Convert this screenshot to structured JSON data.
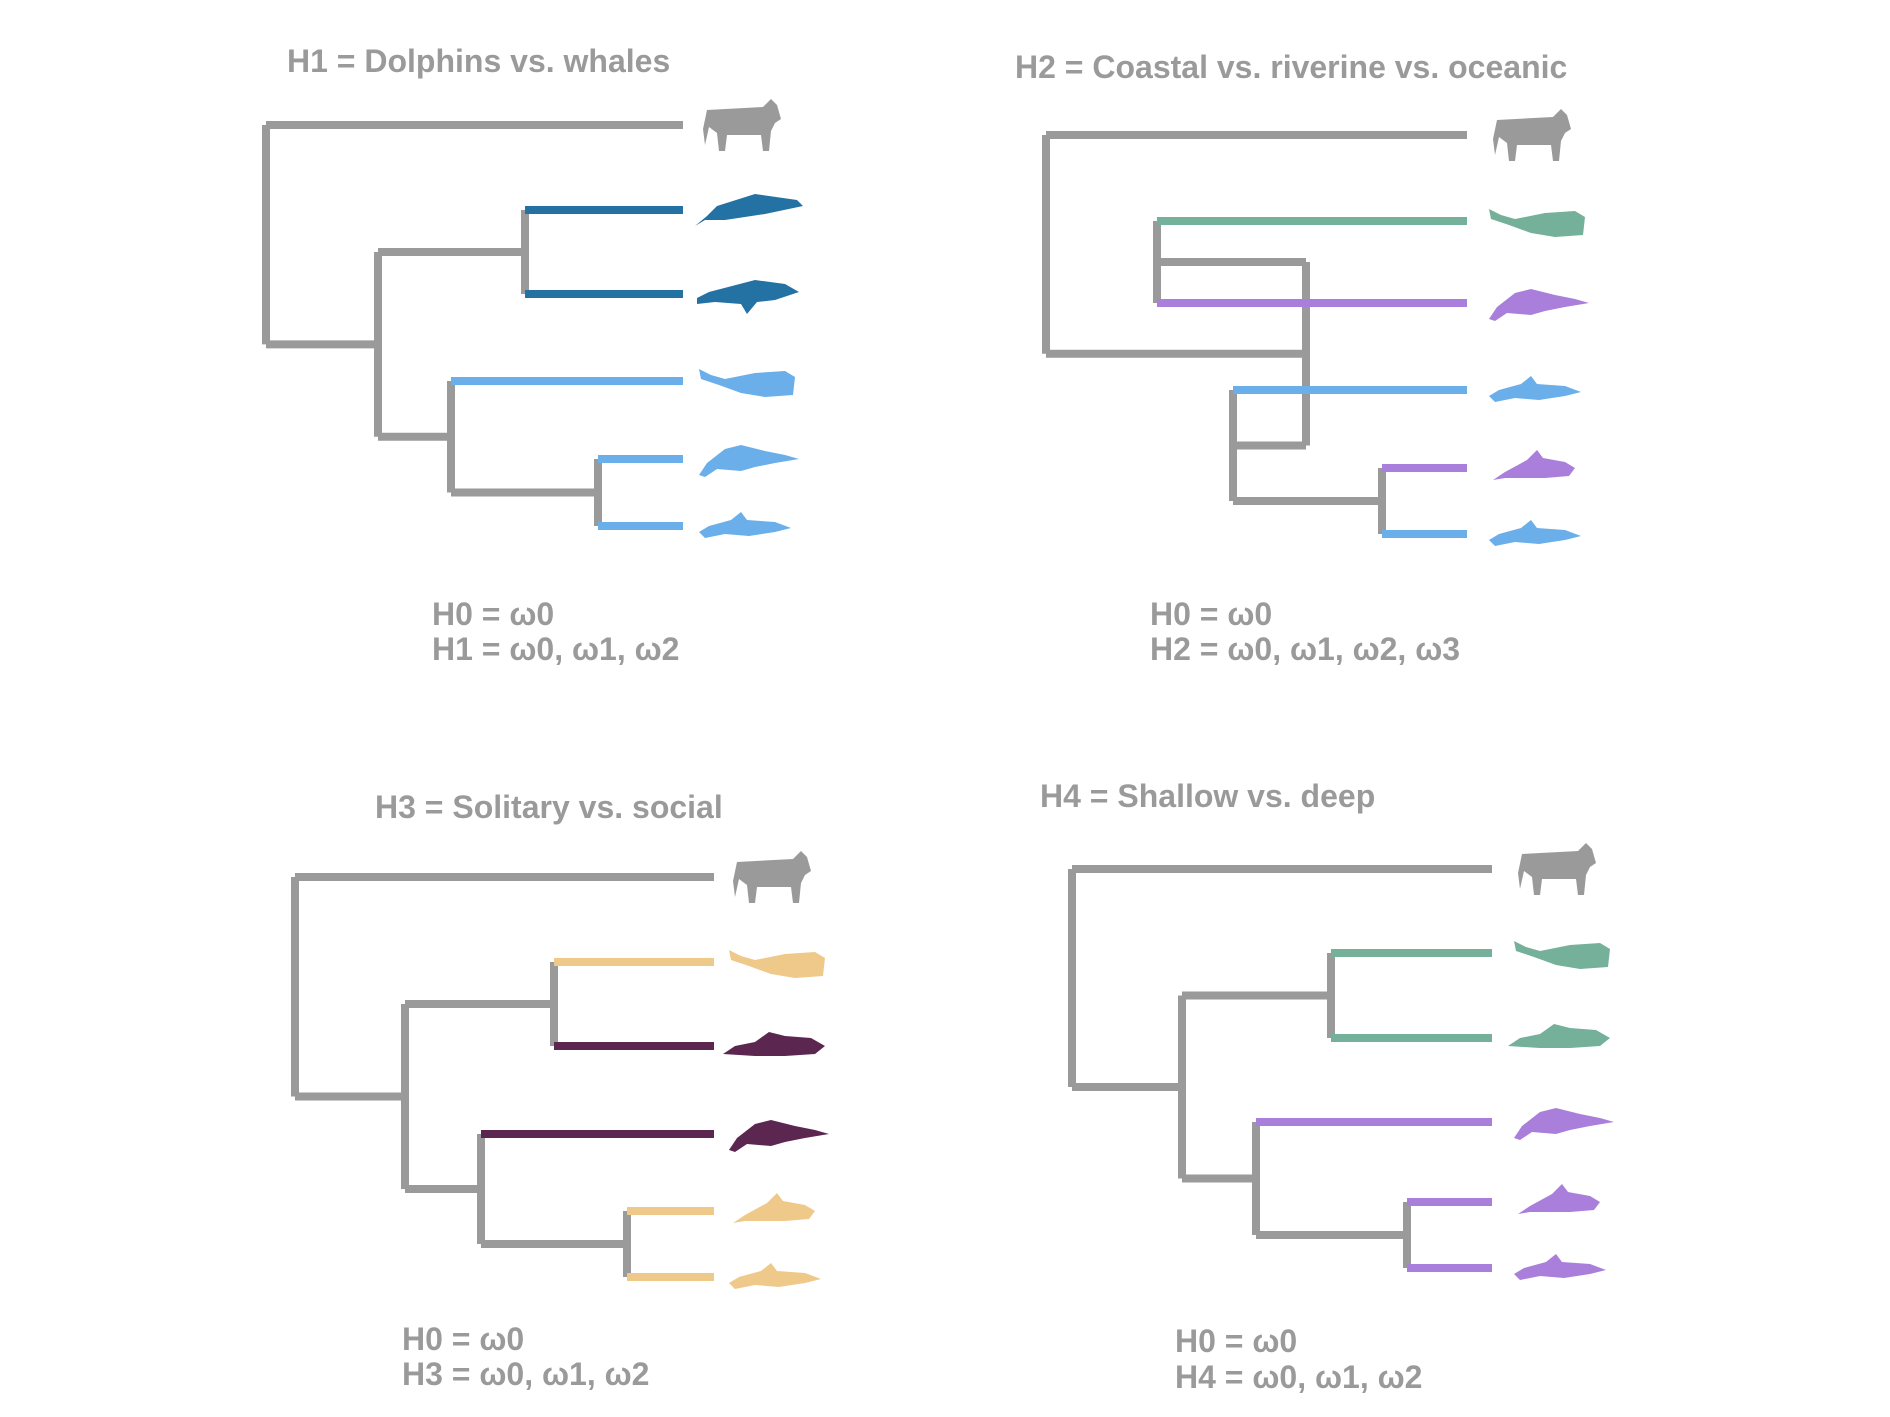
{
  "colors": {
    "gray": "#9a9a9a",
    "dark_blue": "#2471a3",
    "light_blue": "#6aaeea",
    "green": "#74b09a",
    "purple": "#a97fdb",
    "tan": "#eec98a",
    "plum": "#5b2650"
  },
  "panels": [
    {
      "title": "H1 = Dolphins vs. whales",
      "hypotheses": [
        "H0 = ω0",
        "H1 = ω0, ω1, ω2"
      ],
      "tips": [
        {
          "icon": "cow-icon",
          "color": "gray"
        },
        {
          "icon": "baleen-whale-icon",
          "color": "dark_blue"
        },
        {
          "icon": "humpback-whale-icon",
          "color": "dark_blue"
        },
        {
          "icon": "sperm-whale-icon",
          "color": "light_blue"
        },
        {
          "icon": "river-dolphin-icon",
          "color": "light_blue"
        },
        {
          "icon": "dolphin-icon",
          "color": "light_blue"
        }
      ]
    },
    {
      "title": "H2 = Coastal vs. riverine vs. oceanic",
      "hypotheses": [
        "H0 = ω0",
        "H2 = ω0, ω1, ω2, ω3"
      ],
      "tips": [
        {
          "icon": "cow-icon",
          "color": "gray"
        },
        {
          "icon": "sperm-whale-icon",
          "color": "green"
        },
        {
          "icon": "river-dolphin-icon",
          "color": "purple"
        },
        {
          "icon": "dolphin-icon",
          "color": "light_blue"
        },
        {
          "icon": "porpoise-icon",
          "color": "purple"
        },
        {
          "icon": "dolphin-icon",
          "color": "light_blue"
        }
      ]
    },
    {
      "title": "H3 = Solitary vs. social",
      "hypotheses": [
        "H0 = ω0",
        "H3 = ω0, ω1, ω2"
      ],
      "tips": [
        {
          "icon": "cow-icon",
          "color": "gray"
        },
        {
          "icon": "sperm-whale-icon",
          "color": "tan"
        },
        {
          "icon": "beaked-whale-icon",
          "color": "plum"
        },
        {
          "icon": "river-dolphin-icon",
          "color": "plum"
        },
        {
          "icon": "porpoise-icon",
          "color": "tan"
        },
        {
          "icon": "dolphin-icon",
          "color": "tan"
        }
      ]
    },
    {
      "title": "H4 = Shallow vs. deep",
      "hypotheses": [
        "H0 = ω0",
        "H4 = ω0, ω1, ω2"
      ],
      "tips": [
        {
          "icon": "cow-icon",
          "color": "gray"
        },
        {
          "icon": "sperm-whale-icon",
          "color": "green"
        },
        {
          "icon": "beaked-whale-icon",
          "color": "green"
        },
        {
          "icon": "river-dolphin-icon",
          "color": "purple"
        },
        {
          "icon": "porpoise-icon",
          "color": "purple"
        },
        {
          "icon": "dolphin-icon",
          "color": "purple"
        }
      ]
    }
  ]
}
